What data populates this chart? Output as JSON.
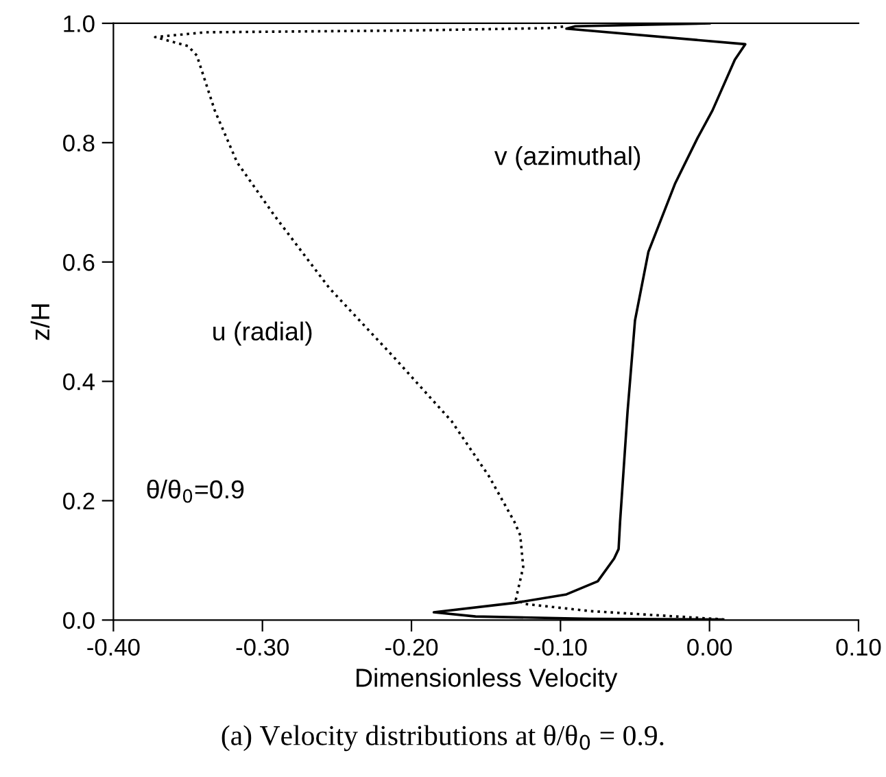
{
  "chart_data": {
    "type": "line",
    "xlabel": "Dimensionless Velocity",
    "ylabel": "z/H",
    "xlim": [
      -0.4,
      0.1
    ],
    "ylim": [
      0,
      1
    ],
    "xticks": [
      {
        "value": -0.4,
        "label": "-0.40"
      },
      {
        "value": -0.3,
        "label": "-0.30"
      },
      {
        "value": -0.2,
        "label": "-0.20"
      },
      {
        "value": -0.1,
        "label": "-0.10"
      },
      {
        "value": 0,
        "label": "0.00"
      },
      {
        "value": 0.1,
        "label": "0.10"
      }
    ],
    "yticks": [
      {
        "value": 0,
        "label": "0.0"
      },
      {
        "value": 0.2,
        "label": "0.2"
      },
      {
        "value": 0.4,
        "label": "0.4"
      },
      {
        "value": 0.6,
        "label": "0.6"
      },
      {
        "value": 0.8,
        "label": "0.8"
      },
      {
        "value": 1,
        "label": "1.0"
      }
    ],
    "grid": false,
    "marker": "none",
    "series": [
      {
        "name": "v (azimuthal)",
        "color": "#000000",
        "line_style": "solid",
        "x": [
          0.008,
          -0.08,
          -0.157,
          -0.185,
          -0.13,
          -0.096,
          -0.075,
          -0.064,
          -0.061,
          -0.06,
          -0.055,
          -0.05,
          -0.041,
          -0.023,
          -0.008,
          0.002,
          0.017,
          0.024,
          -0.096,
          -0.09,
          0.0
        ],
        "values": [
          0.001,
          0.002,
          0.006,
          0.013,
          0.029,
          0.043,
          0.065,
          0.103,
          0.119,
          0.165,
          0.349,
          0.502,
          0.617,
          0.732,
          0.808,
          0.854,
          0.939,
          0.965,
          0.991,
          0.995,
          1.0
        ]
      },
      {
        "name": "u (radial)",
        "color": "#000000",
        "line_style": "dotted",
        "x": [
          0.01,
          -0.035,
          -0.08,
          -0.124,
          -0.13,
          -0.125,
          -0.127,
          -0.131,
          -0.148,
          -0.173,
          -0.212,
          -0.255,
          -0.292,
          -0.317,
          -0.332,
          -0.344,
          -0.35,
          -0.372,
          -0.338,
          -0.2,
          -0.108,
          -0.096
        ],
        "values": [
          0.001,
          0.008,
          0.015,
          0.027,
          0.034,
          0.089,
          0.142,
          0.165,
          0.241,
          0.333,
          0.441,
          0.556,
          0.678,
          0.767,
          0.854,
          0.946,
          0.962,
          0.977,
          0.985,
          0.988,
          0.992,
          0.995
        ]
      }
    ],
    "annotations": [
      "θ/θ$_{0}$=0.9",
      "(a) Velocity distributions at θ/θ$_{0}$ = 0.9."
    ]
  }
}
